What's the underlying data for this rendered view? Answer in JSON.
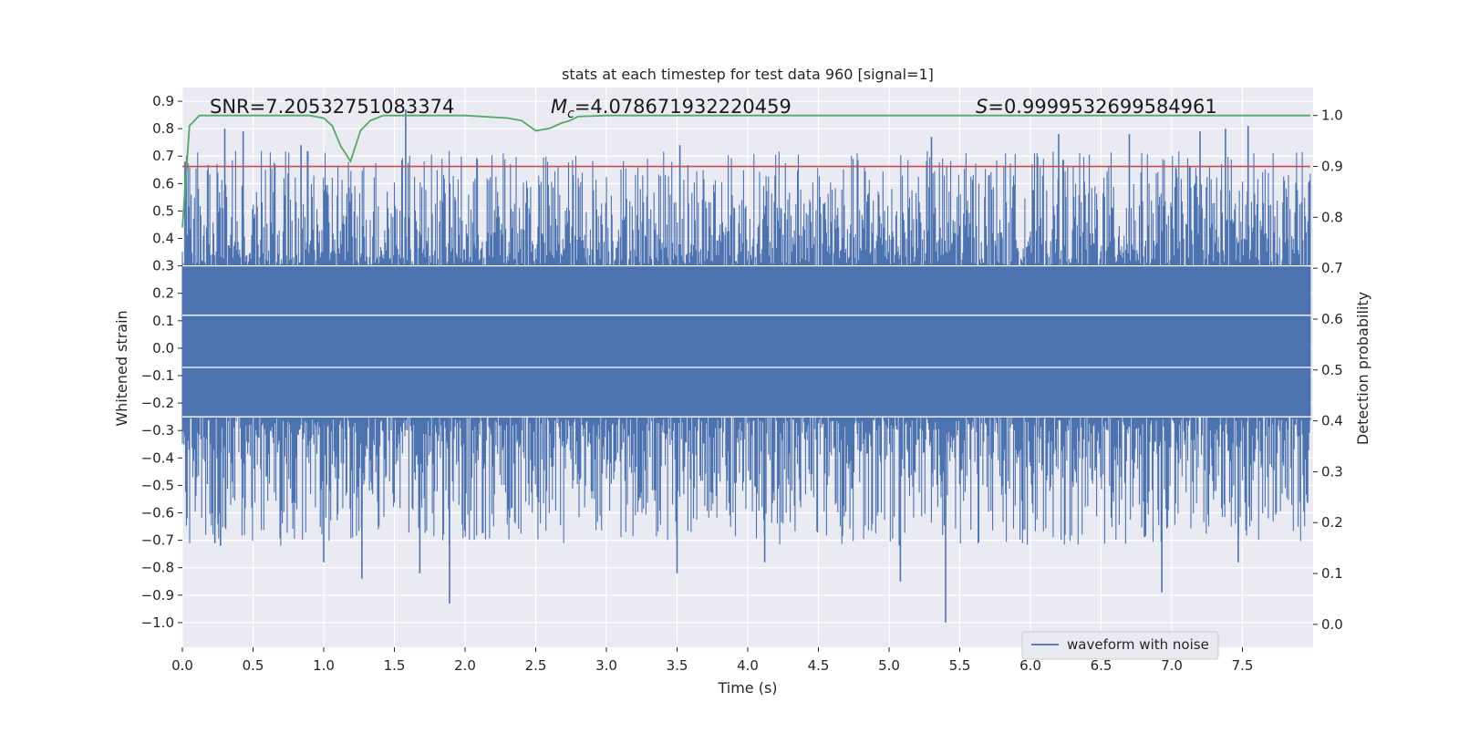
{
  "chart_data": {
    "type": "line",
    "title": "stats at each timestep for test data 960 [signal=1]",
    "xlabel": "Time (s)",
    "ylabel_left": "Whitened strain",
    "ylabel_right": "Detection probability",
    "xlim": [
      0.0,
      8.0
    ],
    "ylim_left": [
      -1.09,
      0.95
    ],
    "ylim_right": [
      -0.045,
      1.055
    ],
    "x_ticks": [
      0.0,
      0.5,
      1.0,
      1.5,
      2.0,
      2.5,
      3.0,
      3.5,
      4.0,
      4.5,
      5.0,
      5.5,
      6.0,
      6.5,
      7.0,
      7.5
    ],
    "x_tick_labels": [
      "0.0",
      "0.5",
      "1.0",
      "1.5",
      "2.0",
      "2.5",
      "3.0",
      "3.5",
      "4.0",
      "4.5",
      "5.0",
      "5.5",
      "6.0",
      "6.5",
      "7.0",
      "7.5"
    ],
    "y_left_ticks": [
      0.9,
      0.8,
      0.7,
      0.6,
      0.5,
      0.4,
      0.3,
      0.2,
      0.1,
      0.0,
      -0.1,
      -0.2,
      -0.3,
      -0.4,
      -0.5,
      -0.6,
      -0.7,
      -0.8,
      -0.9,
      -1.0
    ],
    "y_left_tick_labels": [
      "0.9",
      "0.8",
      "0.7",
      "0.6",
      "0.5",
      "0.4",
      "0.3",
      "0.2",
      "0.1",
      "0.0",
      "−0.1",
      "−0.2",
      "−0.3",
      "−0.4",
      "−0.5",
      "−0.6",
      "−0.7",
      "−0.8",
      "−0.9",
      "−1.0"
    ],
    "y_right_ticks": [
      1.0,
      0.9,
      0.8,
      0.7,
      0.6,
      0.5,
      0.4,
      0.3,
      0.2,
      0.1,
      0.0
    ],
    "y_right_tick_labels": [
      "1.0",
      "0.9",
      "0.8",
      "0.7",
      "0.6",
      "0.5",
      "0.4",
      "0.3",
      "0.2",
      "0.1",
      "0.0"
    ],
    "annotations": {
      "snr": "SNR=7.20532751083374",
      "mc_symbol": "M",
      "mc_subscript": "c",
      "mc_value": "=4.078671932220459",
      "s_symbol": "S",
      "s_value": "=0.9999532699584961"
    },
    "legend": {
      "label": "waveform with noise",
      "placement": "lower-right"
    },
    "grid": true,
    "series": [
      {
        "name": "waveform with noise",
        "axis": "left",
        "color": "#4c72b0",
        "kind": "noisy-waveform",
        "duration_s": 7.98,
        "core_band": [
          -0.25,
          0.3
        ],
        "peak_points": [
          {
            "x": 0.02,
            "y": 0.68
          },
          {
            "x": 0.3,
            "y": 0.8
          },
          {
            "x": 0.43,
            "y": 0.79
          },
          {
            "x": 0.84,
            "y": 0.74
          },
          {
            "x": 1.58,
            "y": 0.87
          },
          {
            "x": 3.52,
            "y": 0.74
          },
          {
            "x": 5.3,
            "y": 0.77
          },
          {
            "x": 6.2,
            "y": 0.78
          },
          {
            "x": 6.7,
            "y": 0.78
          },
          {
            "x": 7.2,
            "y": 0.79
          },
          {
            "x": 7.38,
            "y": 0.8
          },
          {
            "x": 7.54,
            "y": 0.81
          }
        ],
        "trough_points": [
          {
            "x": 0.23,
            "y": -0.71
          },
          {
            "x": 0.27,
            "y": -0.72
          },
          {
            "x": 1.0,
            "y": -0.78
          },
          {
            "x": 1.27,
            "y": -0.84
          },
          {
            "x": 1.89,
            "y": -0.93
          },
          {
            "x": 1.68,
            "y": -0.82
          },
          {
            "x": 3.5,
            "y": -0.82
          },
          {
            "x": 4.12,
            "y": -0.78
          },
          {
            "x": 5.08,
            "y": -0.85
          },
          {
            "x": 5.4,
            "y": -1.0
          },
          {
            "x": 6.93,
            "y": -0.89
          },
          {
            "x": 7.47,
            "y": -0.78
          }
        ]
      },
      {
        "name": "",
        "axis": "right",
        "color": "#55a868",
        "x": [
          0.0,
          0.05,
          0.12,
          0.3,
          0.6,
          0.9,
          1.0,
          1.06,
          1.12,
          1.19,
          1.26,
          1.33,
          1.42,
          1.52,
          1.7,
          2.0,
          2.3,
          2.4,
          2.5,
          2.6,
          2.68,
          2.74,
          2.8,
          3.0,
          4.0,
          5.0,
          6.0,
          7.0,
          7.98
        ],
        "y": [
          0.78,
          0.98,
          1.0,
          1.0,
          1.0,
          1.0,
          0.995,
          0.98,
          0.94,
          0.91,
          0.97,
          0.99,
          1.0,
          1.0,
          1.0,
          1.0,
          0.995,
          0.99,
          0.97,
          0.975,
          0.985,
          0.99,
          0.998,
          1.0,
          1.0,
          1.0,
          1.0,
          1.0,
          1.0
        ]
      },
      {
        "name": "",
        "axis": "right",
        "color": "#c44e52",
        "x": [
          0.0,
          7.98
        ],
        "y": [
          0.9,
          0.9
        ]
      }
    ]
  }
}
